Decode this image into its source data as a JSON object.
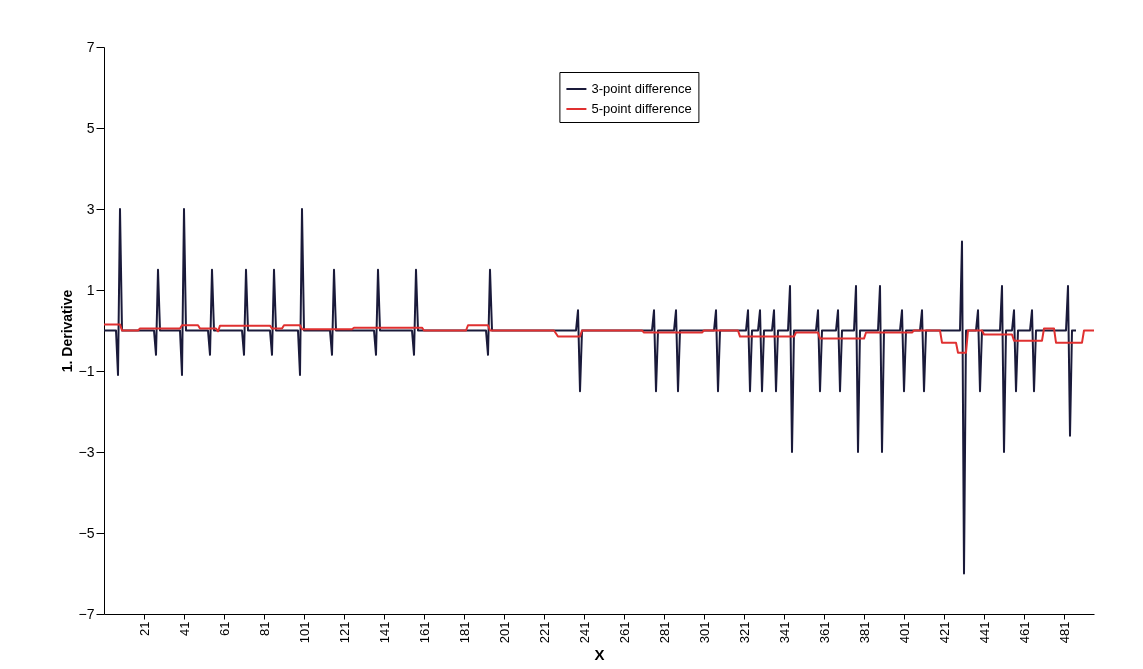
{
  "chart_data": {
    "type": "line",
    "xlabel": "X",
    "ylabel": "1. Derivative",
    "xlim": [
      1,
      496
    ],
    "xticks": [
      21,
      41,
      61,
      81,
      101,
      121,
      141,
      161,
      181,
      201,
      221,
      241,
      261,
      281,
      301,
      321,
      341,
      361,
      381,
      401,
      421,
      441,
      461,
      481
    ],
    "ylim": [
      -7,
      7
    ],
    "yticks": [
      -7,
      -5,
      -3,
      -1,
      1,
      3,
      5,
      7
    ],
    "grid": false,
    "legend": "top",
    "marker": "none",
    "line_style": "solid",
    "series": [
      {
        "name": "3-point difference",
        "color": "#1a1a3a",
        "x": [
          1,
          7,
          8,
          9,
          10,
          26,
          27,
          28,
          29,
          39,
          40,
          41,
          42,
          53,
          54,
          55,
          56,
          70,
          71,
          72,
          73,
          84,
          85,
          86,
          87,
          98,
          99,
          100,
          101,
          114,
          115,
          116,
          117,
          136,
          137,
          138,
          139,
          155,
          156,
          157,
          158,
          192,
          193,
          194,
          195,
          237,
          238,
          239,
          240,
          275,
          276,
          277,
          278,
          286,
          287,
          288,
          289,
          306,
          307,
          308,
          309,
          322,
          323,
          324,
          325,
          328,
          329,
          330,
          331,
          335,
          336,
          337,
          338,
          343,
          344,
          345,
          346,
          357,
          358,
          359,
          360,
          367,
          368,
          369,
          370,
          376,
          377,
          378,
          379,
          388,
          389,
          390,
          391,
          399,
          400,
          401,
          402,
          409,
          410,
          411,
          412,
          429,
          430,
          431,
          432,
          437,
          438,
          439,
          440,
          449,
          450,
          451,
          452,
          455,
          456,
          457,
          458,
          464,
          465,
          466,
          467,
          482,
          483,
          484,
          485,
          487
        ],
        "values": [
          0,
          0,
          -1.1,
          3,
          0,
          0,
          -0.6,
          1.5,
          0,
          0,
          -1.1,
          3,
          0,
          0,
          -0.6,
          1.5,
          0,
          0,
          -0.6,
          1.5,
          0,
          0,
          -0.6,
          1.5,
          0,
          0,
          -1.1,
          3,
          0,
          0,
          -0.6,
          1.5,
          0,
          0,
          -0.6,
          1.5,
          0,
          0,
          -0.6,
          1.5,
          0,
          0,
          -0.6,
          1.5,
          0,
          0,
          0.5,
          -1.5,
          0,
          0,
          0.5,
          -1.5,
          0,
          0,
          0.5,
          -1.5,
          0,
          0,
          0.5,
          -1.5,
          0,
          0,
          0.5,
          -1.5,
          0,
          0,
          0.5,
          -1.5,
          0,
          0,
          0.5,
          -1.5,
          0,
          0,
          1.1,
          -3,
          0,
          0,
          0.5,
          -1.5,
          0,
          0,
          0.5,
          -1.5,
          0,
          0,
          1.1,
          -3,
          0,
          0,
          1.1,
          -3,
          0,
          0,
          0.5,
          -1.5,
          0,
          0,
          0.5,
          -1.5,
          0,
          0,
          2.2,
          -6,
          0,
          0,
          0.5,
          -1.5,
          0,
          0,
          1.1,
          -3,
          0,
          0,
          0.5,
          -1.5,
          0,
          0,
          0.5,
          -1.5,
          0,
          0,
          1.1,
          -2.6,
          0,
          0
        ]
      },
      {
        "name": "5-point difference",
        "color": "#e03030",
        "x": [
          1,
          9,
          10,
          18,
          19,
          39,
          40,
          48,
          49,
          57,
          58,
          59,
          84,
          85,
          90,
          91,
          99,
          100,
          125,
          126,
          160,
          161,
          182,
          183,
          193,
          194,
          226,
          228,
          239,
          240,
          270,
          271,
          300,
          301,
          318,
          319,
          346,
          347,
          358,
          359,
          381,
          382,
          405,
          406,
          419,
          420,
          427,
          428,
          432,
          433,
          440,
          441,
          455,
          456,
          470,
          471,
          476,
          477,
          490,
          491,
          496
        ],
        "values": [
          0.15,
          0.15,
          0,
          0,
          0.05,
          0.05,
          0.13,
          0.13,
          0.05,
          0.05,
          -0.02,
          0.12,
          0.12,
          0.05,
          0.05,
          0.13,
          0.13,
          0.03,
          0.03,
          0.07,
          0.07,
          0,
          0,
          0.13,
          0.13,
          0,
          0,
          -0.15,
          -0.15,
          0,
          0,
          -0.05,
          -0.05,
          0,
          0,
          -0.15,
          -0.15,
          -0.05,
          -0.05,
          -0.2,
          -0.2,
          -0.05,
          -0.05,
          0,
          0,
          -0.3,
          -0.3,
          -0.55,
          -0.55,
          0,
          0,
          -0.1,
          -0.1,
          -0.25,
          -0.25,
          0.05,
          0.05,
          -0.3,
          -0.3,
          0,
          0
        ]
      }
    ]
  }
}
